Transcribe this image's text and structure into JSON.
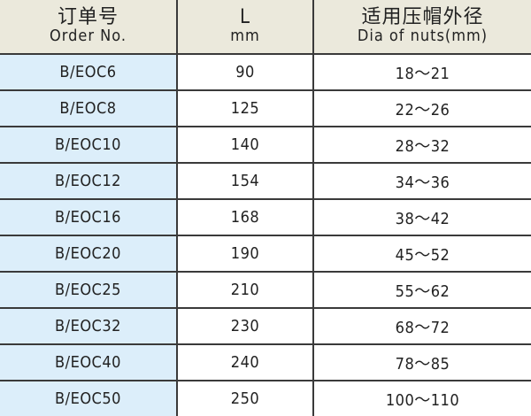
{
  "header": {
    "order": {
      "zh": "订单号",
      "en": "Order No."
    },
    "length": {
      "zh": "L",
      "en": "mm"
    },
    "dia": {
      "zh": "适用压帽外径",
      "en": "Dia of nuts(mm)"
    }
  },
  "rows": [
    {
      "order": "B/EOC6",
      "length": "90",
      "dia": "18～21"
    },
    {
      "order": "B/EOC8",
      "length": "125",
      "dia": "22～26"
    },
    {
      "order": "B/EOC10",
      "length": "140",
      "dia": "28～32"
    },
    {
      "order": "B/EOC12",
      "length": "154",
      "dia": "34～36"
    },
    {
      "order": "B/EOC16",
      "length": "168",
      "dia": "38～42"
    },
    {
      "order": "B/EOC20",
      "length": "190",
      "dia": "45～52"
    },
    {
      "order": "B/EOC25",
      "length": "210",
      "dia": "55～62"
    },
    {
      "order": "B/EOC32",
      "length": "230",
      "dia": "68～72"
    },
    {
      "order": "B/EOC40",
      "length": "240",
      "dia": "78～85"
    },
    {
      "order": "B/EOC50",
      "length": "250",
      "dia": "100～110"
    }
  ],
  "colors": {
    "header_bg": "#ebe9dc",
    "order_col_bg": "#dceefa",
    "border": "#3a3a3a"
  }
}
